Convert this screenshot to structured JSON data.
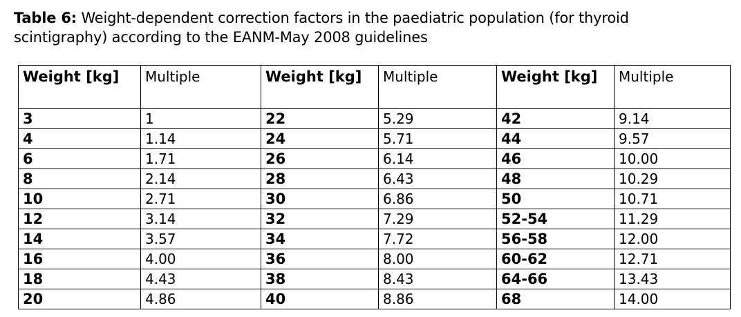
{
  "caption": {
    "label": "Table 6:",
    "text": " Weight-dependent correction factors in the paediatric population (for thyroid scintigraphy) according to the EANM-May 2008 guidelines"
  },
  "table": {
    "headers": {
      "weight": "Weight [kg]",
      "multiple": "Multiple"
    },
    "rows": [
      {
        "w1": "3",
        "m1": "1",
        "w2": "22",
        "m2": "5.29",
        "w3": "42",
        "m3": "9.14"
      },
      {
        "w1": "4",
        "m1": "1.14",
        "w2": "24",
        "m2": "5.71",
        "w3": "44",
        "m3": "9.57"
      },
      {
        "w1": "6",
        "m1": "1.71",
        "w2": "26",
        "m2": "6.14",
        "w3": "46",
        "m3": "10.00"
      },
      {
        "w1": "8",
        "m1": "2.14",
        "w2": "28",
        "m2": "6.43",
        "w3": "48",
        "m3": "10.29"
      },
      {
        "w1": "10",
        "m1": "2.71",
        "w2": "30",
        "m2": "6.86",
        "w3": "50",
        "m3": "10.71"
      },
      {
        "w1": "12",
        "m1": "3.14",
        "w2": "32",
        "m2": "7.29",
        "w3": "52-54",
        "m3": "11.29"
      },
      {
        "w1": "14",
        "m1": "3.57",
        "w2": "34",
        "m2": "7.72",
        "w3": "56-58",
        "m3": "12.00"
      },
      {
        "w1": "16",
        "m1": "4.00",
        "w2": "36",
        "m2": "8.00",
        "w3": "60-62",
        "m3": "12.71"
      },
      {
        "w1": "18",
        "m1": "4.43",
        "w2": "38",
        "m2": "8.43",
        "w3": "64-66",
        "m3": "13.43"
      },
      {
        "w1": "20",
        "m1": "4.86",
        "w2": "40",
        "m2": "8.86",
        "w3": "68",
        "m3": "14.00"
      }
    ]
  }
}
